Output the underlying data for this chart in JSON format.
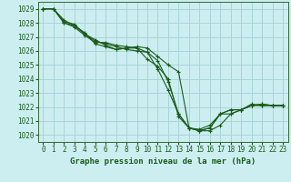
{
  "title": "Graphe pression niveau de la mer (hPa)",
  "background_color": "#cceef0",
  "grid_color": "#aad4d8",
  "line_color": "#1a5c1a",
  "spine_color": "#336633",
  "x_min": 0,
  "x_max": 23,
  "y_min": 1019.5,
  "y_max": 1029.5,
  "y_ticks": [
    1020,
    1021,
    1022,
    1023,
    1024,
    1025,
    1026,
    1027,
    1028,
    1029
  ],
  "x_ticks": [
    0,
    1,
    2,
    3,
    4,
    5,
    6,
    7,
    8,
    9,
    10,
    11,
    12,
    13,
    14,
    15,
    16,
    17,
    18,
    19,
    20,
    21,
    22,
    23
  ],
  "series": [
    [
      1029.0,
      1029.0,
      1028.2,
      1027.8,
      1027.2,
      1026.7,
      1026.5,
      1026.3,
      1026.1,
      1026.0,
      1025.9,
      1024.7,
      1023.2,
      1021.5,
      1020.5,
      1020.3,
      1020.3,
      1020.7,
      1021.5,
      1021.8,
      1022.1,
      1022.2,
      1022.1,
      1022.1
    ],
    [
      1029.0,
      1029.0,
      1028.1,
      1027.9,
      1027.2,
      1026.8,
      1026.4,
      1026.1,
      1026.2,
      1026.2,
      1025.4,
      1024.9,
      1024.0,
      1021.3,
      1020.5,
      1020.3,
      1020.5,
      1021.5,
      1021.5,
      1021.8,
      1022.2,
      1022.1,
      1022.1,
      1022.1
    ],
    [
      1029.0,
      1029.0,
      1028.0,
      1027.7,
      1027.1,
      1026.6,
      1026.6,
      1026.4,
      1026.3,
      1026.2,
      1025.9,
      1025.3,
      1023.8,
      1021.5,
      1020.5,
      1020.3,
      1020.5,
      1021.5,
      1021.8,
      1021.8,
      1022.1,
      1022.2,
      1022.1,
      1022.1
    ],
    [
      1029.0,
      1029.0,
      1028.0,
      1027.8,
      1027.3,
      1026.5,
      1026.3,
      1026.1,
      1026.2,
      1026.3,
      1026.2,
      1025.6,
      1025.0,
      1024.5,
      1020.5,
      1020.4,
      1020.7,
      1021.5,
      1021.8,
      1021.8,
      1022.1,
      1022.1,
      1022.1,
      1022.1
    ]
  ]
}
